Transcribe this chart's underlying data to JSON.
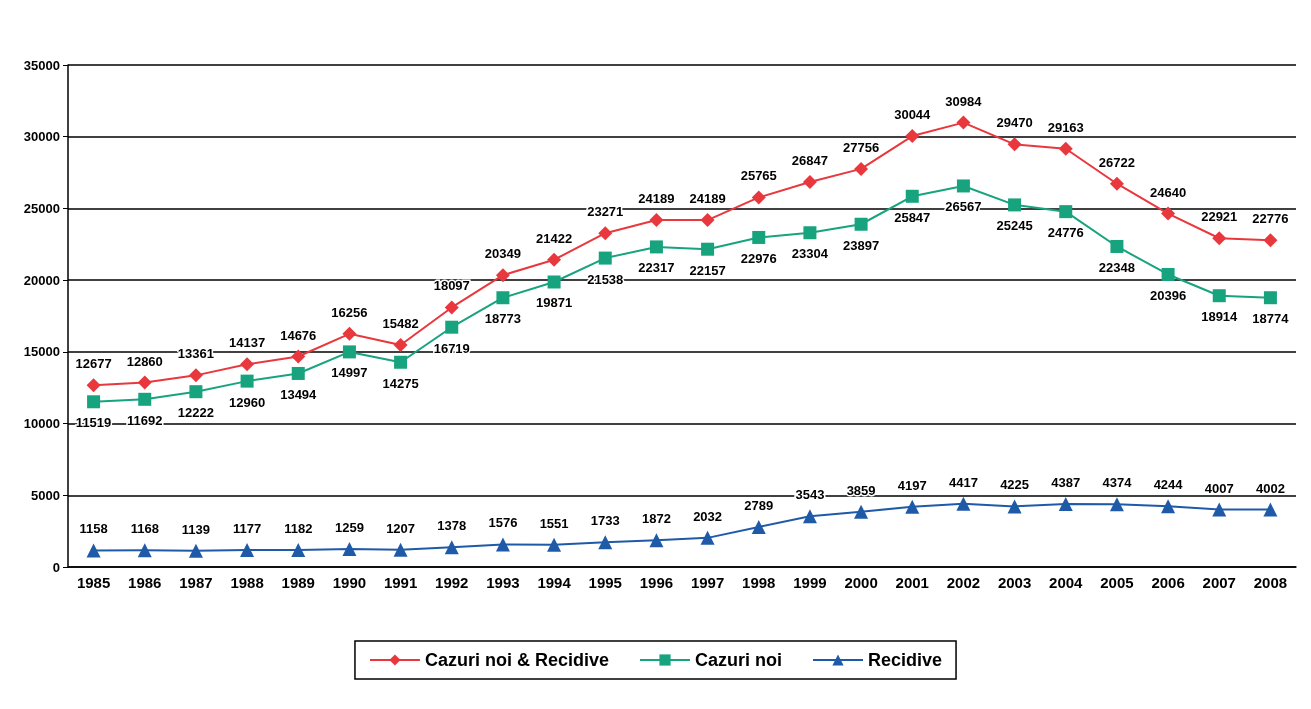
{
  "chart_data": {
    "type": "line",
    "categories": [
      "1985",
      "1986",
      "1987",
      "1988",
      "1989",
      "1990",
      "1991",
      "1992",
      "1993",
      "1994",
      "1995",
      "1996",
      "1997",
      "1998",
      "1999",
      "2000",
      "2001",
      "2002",
      "2003",
      "2004",
      "2005",
      "2006",
      "2007",
      "2008"
    ],
    "series": [
      {
        "name": "Cazuri noi & Recidive",
        "color": "#e8383d",
        "marker": "diamond",
        "values": [
          12677,
          12860,
          13361,
          14137,
          14676,
          16256,
          15482,
          18097,
          20349,
          21422,
          23271,
          24189,
          24189,
          25765,
          26847,
          27756,
          30044,
          30984,
          29470,
          29163,
          26722,
          24640,
          22921,
          22776
        ]
      },
      {
        "name": "Cazuri noi",
        "color": "#16a37e",
        "marker": "square",
        "values": [
          11519,
          11692,
          12222,
          12960,
          13494,
          14997,
          14275,
          16719,
          18773,
          19871,
          21538,
          22317,
          22157,
          22976,
          23304,
          23897,
          25847,
          26567,
          25245,
          24776,
          22348,
          20396,
          18914,
          18774
        ]
      },
      {
        "name": "Recidive",
        "color": "#1f5aa8",
        "marker": "triangle",
        "values": [
          1158,
          1168,
          1139,
          1177,
          1182,
          1259,
          1207,
          1378,
          1576,
          1551,
          1733,
          1872,
          2032,
          2789,
          3543,
          3859,
          4197,
          4417,
          4225,
          4387,
          4374,
          4244,
          4007,
          4002
        ]
      }
    ],
    "ylim": [
      0,
      35000
    ],
    "yticks": [
      0,
      5000,
      10000,
      15000,
      20000,
      25000,
      30000,
      35000
    ],
    "grid": "y",
    "legend": "bottom",
    "data_labels": true,
    "line_style": "solid"
  }
}
